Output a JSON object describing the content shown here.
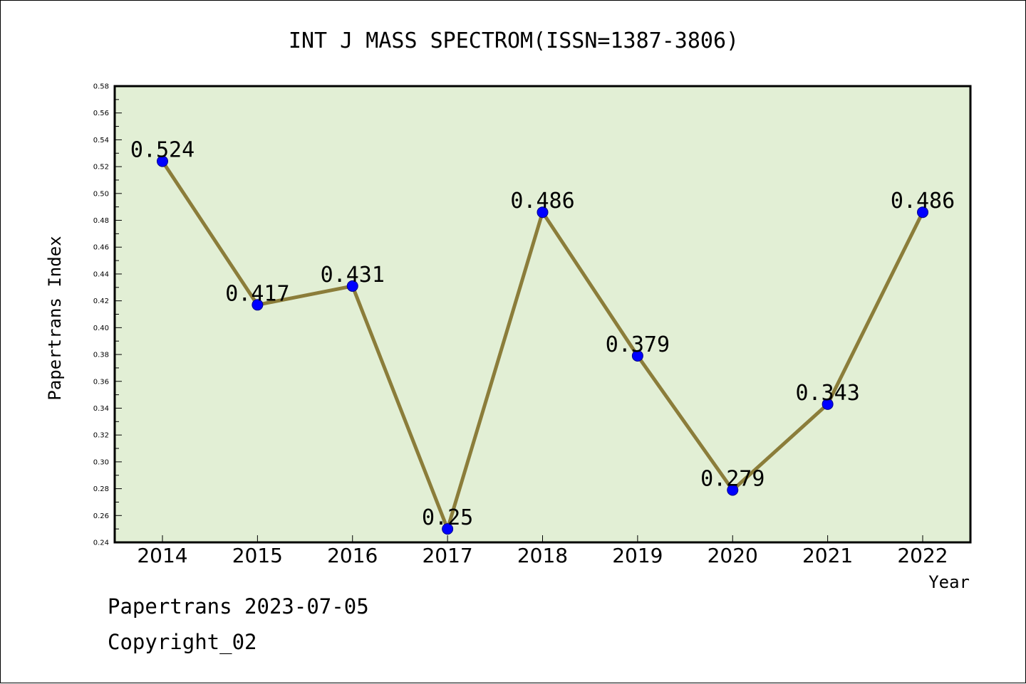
{
  "chart_data": {
    "type": "line",
    "title": "INT J MASS SPECTROM(ISSN=1387-3806)",
    "xlabel": "Year",
    "ylabel": "Papertrans Index",
    "categories": [
      "2014",
      "2015",
      "2016",
      "2017",
      "2018",
      "2019",
      "2020",
      "2021",
      "2022"
    ],
    "series": [
      {
        "values": [
          0.524,
          0.417,
          0.431,
          0.25,
          0.486,
          0.379,
          0.279,
          0.343,
          0.486
        ],
        "labels": [
          "0.524",
          "0.417",
          "0.431",
          "0.25",
          "0.486",
          "0.379",
          "0.279",
          "0.343",
          "0.486"
        ]
      }
    ],
    "ylim": [
      0.24,
      0.58
    ],
    "yticks": [
      0.24,
      0.26,
      0.28,
      0.3,
      0.32,
      0.34,
      0.36,
      0.38,
      0.4,
      0.42,
      0.44,
      0.46,
      0.48,
      0.5,
      0.52,
      0.54,
      0.56,
      0.58
    ],
    "ytick_labels": [
      "0.24",
      "0.26",
      "0.28",
      "0.30",
      "0.32",
      "0.34",
      "0.36",
      "0.38",
      "0.40",
      "0.42",
      "0.44",
      "0.46",
      "0.48",
      "0.50",
      "0.52",
      "0.54",
      "0.56",
      "0.58"
    ],
    "grid": false,
    "colors": {
      "plot_background": "#e2efd5",
      "line": "#8b7d3a",
      "marker": "#0000ff"
    }
  },
  "footer": {
    "line1": "Papertrans 2023-07-05",
    "line2": "Copyright_02"
  }
}
